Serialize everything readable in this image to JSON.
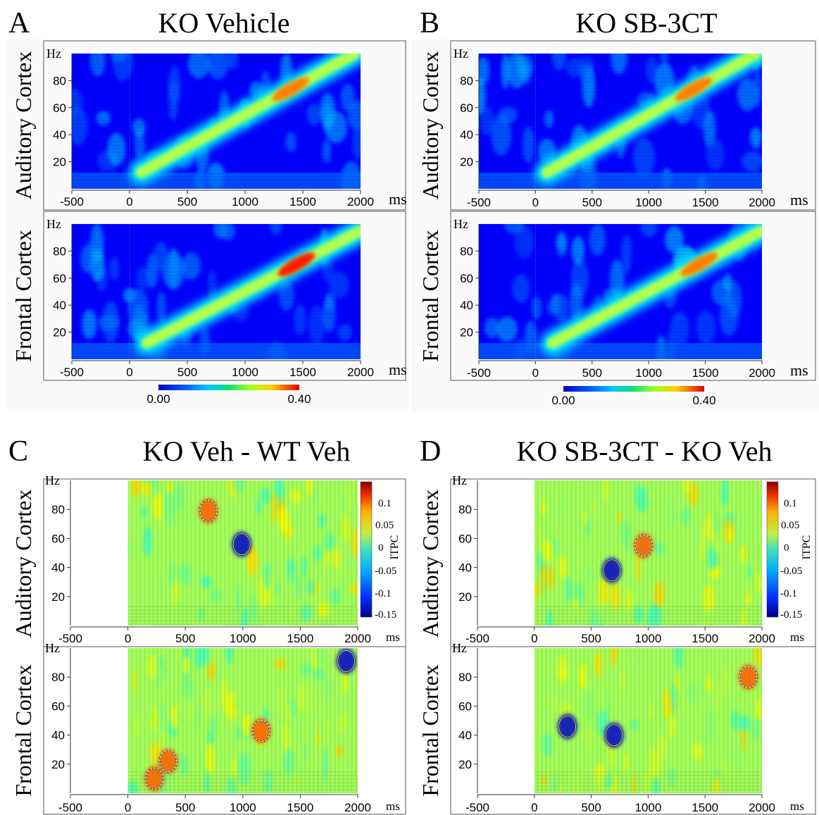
{
  "figure": {
    "panels": [
      {
        "letter": "A",
        "title": "KO Vehicle"
      },
      {
        "letter": "B",
        "title": "KO SB-3CT"
      },
      {
        "letter": "C",
        "title": "KO Veh - WT Veh"
      },
      {
        "letter": "D",
        "title": "KO SB-3CT - KO Veh"
      }
    ],
    "row_labels": {
      "auditory": "Auditory Cortex",
      "frontal": "Frontal Cortex"
    },
    "y_unit": "Hz",
    "x_unit": "ms",
    "colorbar_ab": {
      "min_label": "0.00",
      "max_label": "0.40"
    },
    "colorbar_cd": {
      "label": "ITPC",
      "ticks": [
        "0.1",
        "0.05",
        "0",
        "-0.05",
        "-0.1",
        "-0.15"
      ]
    }
  },
  "chart_data": [
    {
      "type": "heatmap",
      "panel": "A",
      "row": "Auditory Cortex",
      "xlim": [
        -500,
        2000
      ],
      "ylim": [
        0,
        100
      ],
      "x_ticks": [
        "-500",
        "0",
        "500",
        "1000",
        "1500",
        "2000"
      ],
      "y_ticks": [
        "20",
        "40",
        "60",
        "80"
      ],
      "color_range": [
        0.0,
        0.4
      ],
      "ridge": {
        "start": [
          100,
          12
        ],
        "end": [
          1950,
          100
        ],
        "peak_value": 0.3
      }
    },
    {
      "type": "heatmap",
      "panel": "A",
      "row": "Frontal Cortex",
      "xlim": [
        -500,
        2000
      ],
      "ylim": [
        0,
        100
      ],
      "x_ticks": [
        "-500",
        "0",
        "500",
        "1000",
        "1500",
        "2000"
      ],
      "y_ticks": [
        "20",
        "40",
        "60",
        "80"
      ],
      "color_range": [
        0.0,
        0.4
      ],
      "ridge": {
        "start": [
          150,
          12
        ],
        "end": [
          2000,
          95
        ],
        "peak_value": 0.34
      }
    },
    {
      "type": "heatmap",
      "panel": "B",
      "row": "Auditory Cortex",
      "xlim": [
        -500,
        2000
      ],
      "ylim": [
        0,
        100
      ],
      "x_ticks": [
        "-500",
        "0",
        "500",
        "1000",
        "1500",
        "2000"
      ],
      "y_ticks": [
        "20",
        "40",
        "60",
        "80"
      ],
      "color_range": [
        0.0,
        0.4
      ],
      "ridge": {
        "start": [
          100,
          12
        ],
        "end": [
          1950,
          100
        ],
        "peak_value": 0.3
      }
    },
    {
      "type": "heatmap",
      "panel": "B",
      "row": "Frontal Cortex",
      "xlim": [
        -500,
        2000
      ],
      "ylim": [
        0,
        100
      ],
      "x_ticks": [
        "-500",
        "0",
        "500",
        "1000",
        "1500",
        "2000"
      ],
      "y_ticks": [
        "20",
        "40",
        "60",
        "80"
      ],
      "color_range": [
        0.0,
        0.4
      ],
      "ridge": {
        "start": [
          150,
          12
        ],
        "end": [
          2000,
          95
        ],
        "peak_value": 0.3
      }
    },
    {
      "type": "heatmap",
      "panel": "C",
      "row": "Auditory Cortex",
      "xlim": [
        -500,
        2000
      ],
      "data_xrange": [
        0,
        2000
      ],
      "ylim": [
        0,
        100
      ],
      "x_ticks": [
        "-500",
        "0",
        "500",
        "1000",
        "1500",
        "2000"
      ],
      "y_ticks": [
        "20",
        "40",
        "60",
        "80"
      ],
      "color_range": [
        -0.15,
        0.13
      ],
      "clusters": [
        {
          "x": 700,
          "y": 79,
          "sign": "positive"
        },
        {
          "x": 990,
          "y": 56,
          "sign": "negative"
        }
      ]
    },
    {
      "type": "heatmap",
      "panel": "C",
      "row": "Frontal Cortex",
      "xlim": [
        -500,
        2000
      ],
      "data_xrange": [
        0,
        2000
      ],
      "ylim": [
        0,
        100
      ],
      "x_ticks": [
        "-500",
        "0",
        "500",
        "1000",
        "1500",
        "2000"
      ],
      "y_ticks": [
        "20",
        "40",
        "60",
        "80"
      ],
      "color_range": [
        -0.15,
        0.13
      ],
      "clusters": [
        {
          "x": 350,
          "y": 22,
          "sign": "positive"
        },
        {
          "x": 1160,
          "y": 43,
          "sign": "positive"
        },
        {
          "x": 1900,
          "y": 91,
          "sign": "negative"
        },
        {
          "x": 230,
          "y": 10,
          "sign": "positive"
        }
      ]
    },
    {
      "type": "heatmap",
      "panel": "D",
      "row": "Auditory Cortex",
      "xlim": [
        -500,
        2000
      ],
      "data_xrange": [
        0,
        2000
      ],
      "ylim": [
        0,
        100
      ],
      "x_ticks": [
        "-500",
        "0",
        "500",
        "1000",
        "1500",
        "2000"
      ],
      "y_ticks": [
        "20",
        "40",
        "60",
        "80"
      ],
      "color_range": [
        -0.15,
        0.13
      ],
      "clusters": [
        {
          "x": 960,
          "y": 55,
          "sign": "positive"
        },
        {
          "x": 680,
          "y": 38,
          "sign": "negative"
        }
      ]
    },
    {
      "type": "heatmap",
      "panel": "D",
      "row": "Frontal Cortex",
      "xlim": [
        -500,
        2000
      ],
      "data_xrange": [
        0,
        2000
      ],
      "ylim": [
        0,
        100
      ],
      "x_ticks": [
        "-500",
        "0",
        "500",
        "1000",
        "1500",
        "2000"
      ],
      "y_ticks": [
        "20",
        "40",
        "60",
        "80"
      ],
      "color_range": [
        -0.15,
        0.13
      ],
      "clusters": [
        {
          "x": 290,
          "y": 46,
          "sign": "negative"
        },
        {
          "x": 700,
          "y": 40,
          "sign": "negative"
        },
        {
          "x": 1880,
          "y": 80,
          "sign": "positive"
        }
      ]
    }
  ]
}
